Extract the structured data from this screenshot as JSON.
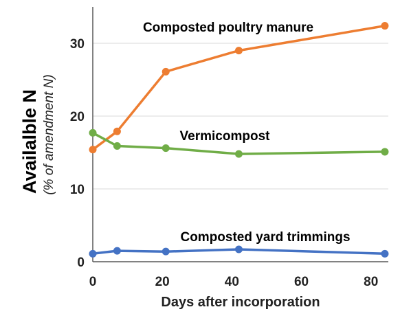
{
  "chart_data": {
    "type": "line",
    "title": "",
    "xlabel": "Days after incorporation",
    "ylabel": "Availalble N",
    "ylabel_sub": "(% of amendment N)",
    "xlim": [
      0,
      85
    ],
    "ylim": [
      0,
      35
    ],
    "xticks": [
      0,
      20,
      40,
      60,
      80
    ],
    "yticks": [
      0,
      10,
      20,
      30
    ],
    "grid": "horizontal",
    "legend": "inline labels",
    "series": [
      {
        "name": "Composted poultry manure",
        "color": "#ED7D31",
        "x": [
          0,
          7,
          21,
          42,
          84
        ],
        "y": [
          15.4,
          17.9,
          26.1,
          29.0,
          32.4
        ]
      },
      {
        "name": "Vermicompost",
        "color": "#70AD47",
        "x": [
          0,
          7,
          21,
          42,
          84
        ],
        "y": [
          17.7,
          15.9,
          15.6,
          14.8,
          15.1
        ]
      },
      {
        "name": "Composted yard trimmings",
        "color": "#4472C4",
        "x": [
          0,
          7,
          21,
          42,
          84
        ],
        "y": [
          1.1,
          1.5,
          1.4,
          1.7,
          1.1
        ]
      }
    ]
  }
}
